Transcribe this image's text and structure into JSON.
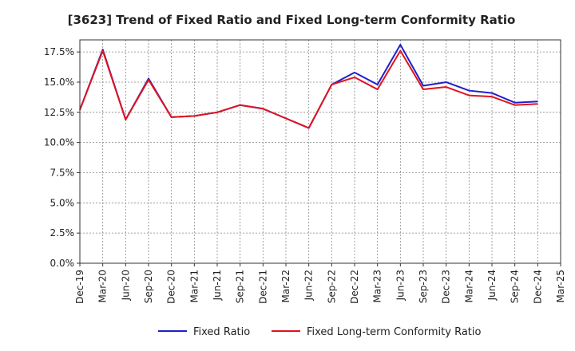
{
  "chart_data": {
    "type": "line",
    "title": "[3623]  Trend of Fixed Ratio and Fixed Long-term Conformity Ratio",
    "xlabel": "",
    "ylabel": "",
    "categories": [
      "Dec-19",
      "Mar-20",
      "Jun-20",
      "Sep-20",
      "Dec-20",
      "Mar-21",
      "Jun-21",
      "Sep-21",
      "Dec-21",
      "Mar-22",
      "Jun-22",
      "Sep-22",
      "Dec-22",
      "Mar-23",
      "Jun-23",
      "Sep-23",
      "Dec-23",
      "Mar-24",
      "Jun-24",
      "Sep-24",
      "Dec-24",
      "Mar-25"
    ],
    "ylim": [
      0,
      18.5
    ],
    "yticks": [
      0,
      2.5,
      5,
      7.5,
      10,
      12.5,
      15,
      17.5
    ],
    "ytick_labels": [
      "0.0%",
      "2.5%",
      "5.0%",
      "7.5%",
      "10.0%",
      "12.5%",
      "15.0%",
      "17.5%"
    ],
    "grid": true,
    "legend_position": "bottom",
    "series": [
      {
        "name": "Fixed Ratio",
        "color": "#1f1fcc",
        "values": [
          12.7,
          17.7,
          11.9,
          15.3,
          12.1,
          12.2,
          12.5,
          13.1,
          12.8,
          12.0,
          11.2,
          14.8,
          15.8,
          14.8,
          18.1,
          14.7,
          15.0,
          14.3,
          14.1,
          13.3,
          13.4,
          null
        ]
      },
      {
        "name": "Fixed Long-term Conformity Ratio",
        "color": "#e0141e",
        "values": [
          12.7,
          17.6,
          11.9,
          15.2,
          12.1,
          12.2,
          12.5,
          13.1,
          12.8,
          12.0,
          11.2,
          14.8,
          15.4,
          14.4,
          17.6,
          14.4,
          14.6,
          13.9,
          13.8,
          13.1,
          13.2,
          null
        ]
      }
    ]
  }
}
